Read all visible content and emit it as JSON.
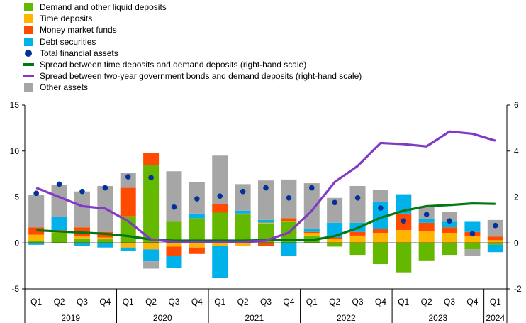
{
  "chart_data": {
    "type": "bar",
    "stacked": true,
    "x": [
      "Q1",
      "Q2",
      "Q3",
      "Q4",
      "Q1",
      "Q2",
      "Q3",
      "Q4",
      "Q1",
      "Q2",
      "Q3",
      "Q4",
      "Q1",
      "Q2",
      "Q3",
      "Q4",
      "Q1",
      "Q2",
      "Q3",
      "Q4",
      "Q1"
    ],
    "years": [
      {
        "label": "2019",
        "start": 0,
        "count": 4
      },
      {
        "label": "2020",
        "start": 4,
        "count": 4
      },
      {
        "label": "2021",
        "start": 8,
        "count": 4
      },
      {
        "label": "2022",
        "start": 12,
        "count": 4
      },
      {
        "label": "2023",
        "start": 16,
        "count": 4
      },
      {
        "label": "2024",
        "start": 20,
        "count": 1
      }
    ],
    "ylim": [
      -5,
      15
    ],
    "yticks": [
      -5,
      0,
      5,
      10,
      15
    ],
    "y2lim": [
      -2,
      6
    ],
    "y2ticks": [
      -2,
      0,
      2,
      4,
      6
    ],
    "grid": false,
    "legend_position": "top-left",
    "series": [
      {
        "name": "Demand and other liquid deposits",
        "kind": "bar",
        "color": "#65b800",
        "values": [
          0.2,
          1.1,
          0.5,
          0.4,
          2.9,
          8.5,
          2.3,
          2.7,
          3.3,
          3.1,
          2.1,
          2.3,
          0.8,
          -0.4,
          -1.3,
          -2.3,
          -3.2,
          -1.9,
          -1.3,
          -0.7,
          -0.2
        ]
      },
      {
        "name": "Time deposits",
        "kind": "bar",
        "color": "#ffb400",
        "values": [
          0.7,
          0.1,
          0.2,
          0.2,
          -0.5,
          -0.7,
          -0.4,
          -0.5,
          -0.3,
          -0.3,
          0.1,
          0.1,
          0.3,
          0.4,
          0.8,
          1.1,
          1.4,
          1.3,
          1.1,
          0.7,
          0.3
        ]
      },
      {
        "name": "Money market funds",
        "kind": "bar",
        "color": "#ff4b00",
        "values": [
          0.8,
          0.2,
          1.0,
          0.6,
          3.1,
          1.3,
          -1.0,
          -0.7,
          0.9,
          0.1,
          -0.3,
          0.3,
          0.1,
          0.2,
          0.4,
          0.4,
          1.8,
          0.9,
          0.6,
          0.5,
          0.4
        ]
      },
      {
        "name": "Debt securities",
        "kind": "bar",
        "color": "#00b1ea",
        "values": [
          -0.2,
          1.4,
          -0.3,
          -0.5,
          -0.4,
          -1.3,
          -1.3,
          0.5,
          -3.5,
          0.3,
          0.3,
          -1.4,
          0.3,
          1.6,
          1.0,
          3.0,
          2.1,
          0.4,
          0.6,
          1.1,
          -0.8
        ]
      },
      {
        "name": "Other assets",
        "kind": "bar",
        "color": "#a6a6a6",
        "values": [
          3.5,
          3.5,
          3.9,
          5.0,
          1.6,
          -0.8,
          5.5,
          3.4,
          5.3,
          2.9,
          4.3,
          4.2,
          5.0,
          2.7,
          4.0,
          1.3,
          0.0,
          1.4,
          1.1,
          -0.7,
          1.8
        ]
      },
      {
        "name": "Total financial assets",
        "kind": "dot",
        "color": "#003299",
        "values": [
          5.4,
          6.4,
          5.6,
          6.0,
          7.2,
          7.1,
          3.9,
          4.8,
          5.1,
          5.6,
          6.0,
          4.9,
          6.0,
          4.4,
          4.9,
          3.8,
          2.4,
          3.1,
          2.4,
          1.0,
          1.9
        ]
      },
      {
        "name": "Spread between time deposits and demand deposits (right-hand scale)",
        "kind": "line",
        "axis": "right",
        "color": "#007816",
        "values": [
          0.55,
          0.5,
          0.45,
          0.4,
          0.3,
          0.15,
          0.1,
          0.1,
          0.1,
          0.1,
          0.12,
          0.12,
          0.12,
          0.3,
          0.65,
          1.1,
          1.4,
          1.6,
          1.65,
          1.72,
          1.7
        ]
      },
      {
        "name": "Spread between two-year government bonds and demand deposits (right-hand scale)",
        "kind": "line",
        "axis": "right",
        "color": "#8139c6",
        "values": [
          2.4,
          2.0,
          1.6,
          1.5,
          0.95,
          0.15,
          0.05,
          0.05,
          0.05,
          0.05,
          0.1,
          0.45,
          1.4,
          2.65,
          3.35,
          4.35,
          4.3,
          4.2,
          4.85,
          4.75,
          4.45
        ]
      }
    ]
  }
}
